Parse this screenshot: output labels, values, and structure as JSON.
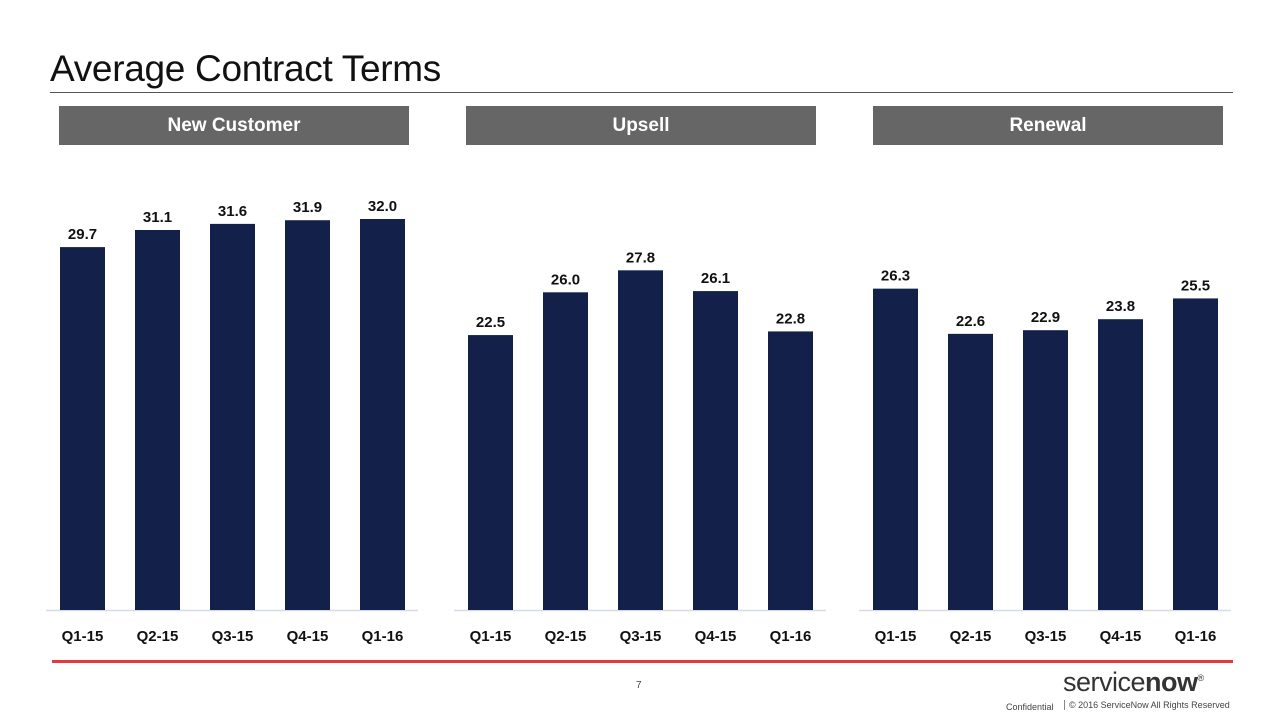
{
  "page": {
    "title": "Average Contract Terms",
    "page_number": "7",
    "brand_name_a": "service",
    "brand_name_b": "now",
    "brand_mark": "®",
    "confidential": "Confidential",
    "copyright": "© 2016 ServiceNow All Rights Reserved"
  },
  "colors": {
    "bar": "#13214a",
    "header_bg": "#666666",
    "accent_red": "#e33943",
    "baseline": "#d6dbe6"
  },
  "chart_data": [
    {
      "type": "bar",
      "title": "New Customer",
      "categories": [
        "Q1-15",
        "Q2-15",
        "Q3-15",
        "Q4-15",
        "Q1-16"
      ],
      "values": [
        29.7,
        31.1,
        31.6,
        31.9,
        32.0
      ],
      "value_labels": [
        "29.7",
        "31.1",
        "31.6",
        "31.9",
        "32.0"
      ],
      "ylim": [
        0,
        34
      ]
    },
    {
      "type": "bar",
      "title": "Upsell",
      "categories": [
        "Q1-15",
        "Q2-15",
        "Q3-15",
        "Q4-15",
        "Q1-16"
      ],
      "values": [
        22.5,
        26.0,
        27.8,
        26.1,
        22.8
      ],
      "value_labels": [
        "22.5",
        "26.0",
        "27.8",
        "26.1",
        "22.8"
      ],
      "ylim": [
        0,
        34
      ]
    },
    {
      "type": "bar",
      "title": "Renewal",
      "categories": [
        "Q1-15",
        "Q2-15",
        "Q3-15",
        "Q4-15",
        "Q1-16"
      ],
      "values": [
        26.3,
        22.6,
        22.9,
        23.8,
        25.5
      ],
      "value_labels": [
        "26.3",
        "22.6",
        "22.9",
        "23.8",
        "25.5"
      ],
      "ylim": [
        0,
        34
      ]
    }
  ]
}
